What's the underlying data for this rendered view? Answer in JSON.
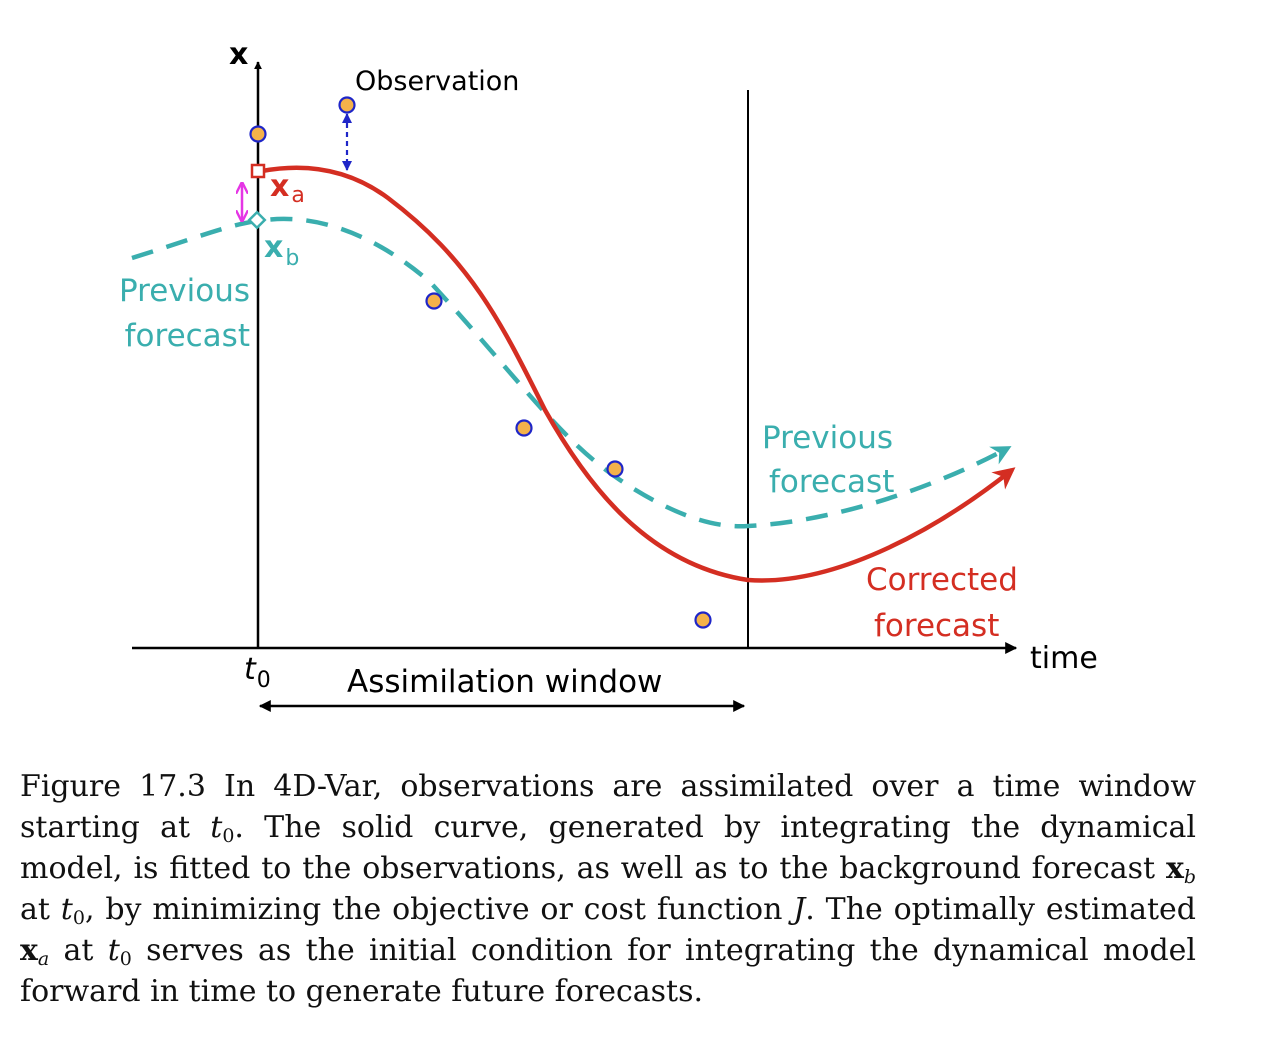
{
  "colors": {
    "corrected": "#d42e22",
    "previous": "#3aaeae",
    "obs_fill": "#f4b24a",
    "obs_stroke": "#1f26c8",
    "increment": "#e535e5",
    "axis": "#000000"
  },
  "labels": {
    "x_axis": "time",
    "y_axis": "x",
    "t0": "t",
    "t0_sub": "0",
    "window": "Assimilation window",
    "observation": "Observation",
    "xa": "x",
    "xa_sub": "a",
    "xb": "x",
    "xb_sub": "b",
    "prev_left_1": "Previous",
    "prev_left_2": "forecast",
    "prev_right_1": "Previous",
    "prev_right_2": "forecast",
    "corr_1": "Corrected",
    "corr_2": "forecast"
  },
  "caption": {
    "p1": "Figure 17.3 In 4D-Var, observations are assimilated over a time window starting at ",
    "t": "t",
    "sub0": "0",
    "p2": ". The solid curve, generated by integrating the dynamical model, is fitted to the observations, as well as to the background forecast ",
    "xb": "x",
    "xb_sub": "b",
    "p3": " at ",
    "p4": ", by minimizing the objective or cost function ",
    "J": "J",
    "p5": ". The optimally estimated ",
    "xa": "x",
    "xa_sub": "a",
    "p6": " at ",
    "p7": " serves as the initial condition for integrating the dynamical model forward in time to generate future forecasts."
  }
}
